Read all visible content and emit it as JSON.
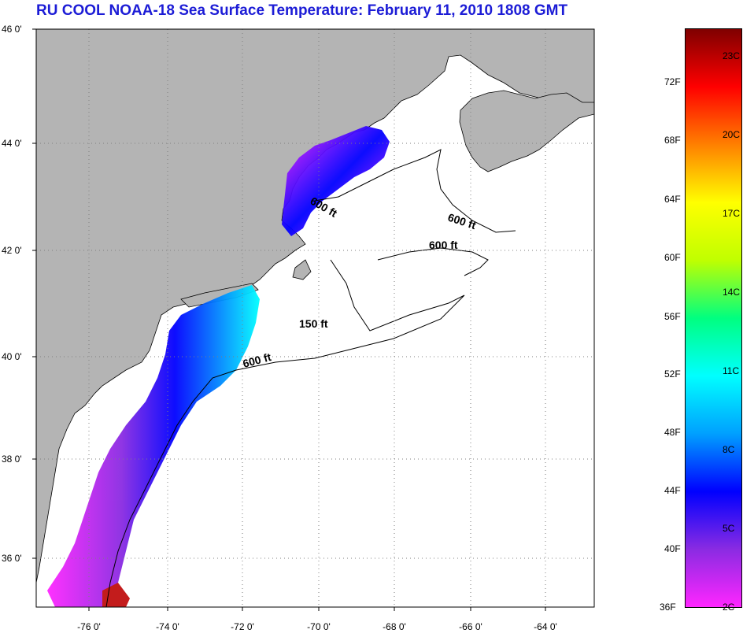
{
  "title": "RU COOL  NOAA-18  Sea Surface Temperature:  February 11, 2010 1808 GMT",
  "map": {
    "lat_labels": [
      "46 0'",
      "44 0'",
      "42 0'",
      "40 0'",
      "38 0'",
      "36 0'"
    ],
    "lon_labels": [
      "-76 0'",
      "-74 0'",
      "-72 0'",
      "-70 0'",
      "-68 0'",
      "-66 0'",
      "-64 0'"
    ],
    "contour_labels": [
      "600 ft",
      "600 ft",
      "600 ft",
      "150 ft",
      "600 ft"
    ],
    "colors": {
      "land": "#b4b4b4",
      "ocean": "#ffffff",
      "grid": "#7f7f7f"
    }
  },
  "colorbar": {
    "fahrenheit_labels": [
      "72F",
      "68F",
      "64F",
      "60F",
      "56F",
      "52F",
      "48F",
      "44F",
      "40F",
      "36F"
    ],
    "celsius_labels": [
      "23C",
      "20C",
      "17C",
      "14C",
      "11C",
      "8C",
      "5C",
      "2C"
    ],
    "range_celsius": [
      2,
      25
    ],
    "colors": [
      "#ff26ff",
      "#8a2be2",
      "#0000ff",
      "#00a0ff",
      "#00ffff",
      "#00ff80",
      "#c0ff00",
      "#ffff00",
      "#ff8000",
      "#ff0000",
      "#7f0000"
    ]
  }
}
